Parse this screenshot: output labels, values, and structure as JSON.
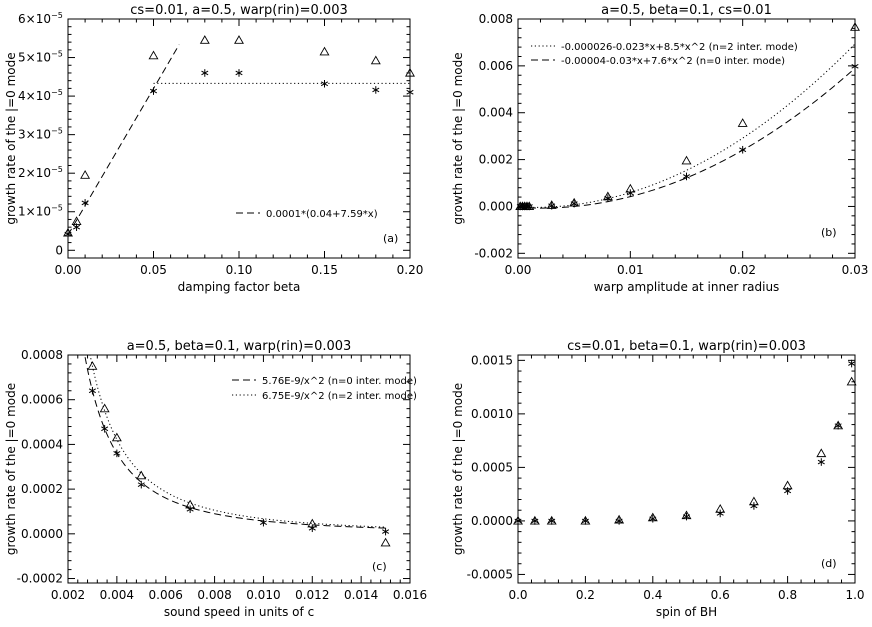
{
  "chart_data": [
    {
      "type": "scatter",
      "panel": "a",
      "title": "cs=0.01, a=0.5, warp(rin)=0.003",
      "xlabel": "damping factor beta",
      "ylabel": "growth rate of the |=0 mode",
      "xlim": [
        0.0,
        0.2
      ],
      "ylim": [
        -2e-06,
        6e-05
      ],
      "xticks": [
        0.0,
        0.05,
        0.1,
        0.15,
        0.2
      ],
      "xtick_labels": [
        "0.00",
        "0.05",
        "0.10",
        "0.15",
        "0.20"
      ],
      "yticks": [
        0,
        1e-05,
        2e-05,
        3e-05,
        4e-05,
        5e-05,
        6e-05
      ],
      "ytick_mantissa": [
        "0",
        "1×10",
        "2×10",
        "3×10",
        "4×10",
        "5×10",
        "6×10"
      ],
      "ytick_exponent": [
        "",
        "−5",
        "−5",
        "−5",
        "−5",
        "−5",
        "−5"
      ],
      "tag": "(a)",
      "series": [
        {
          "name": "triangles",
          "marker": "triangle",
          "x": [
            0.0,
            0.005,
            0.01,
            0.05,
            0.08,
            0.1,
            0.15,
            0.18,
            0.2
          ],
          "y": [
            4.5e-06,
            7.5e-06,
            1.95e-05,
            5.05e-05,
            5.45e-05,
            5.45e-05,
            5.15e-05,
            4.92e-05,
            4.6e-05
          ]
        },
        {
          "name": "asterisks",
          "marker": "asterisk",
          "x": [
            0.0,
            0.005,
            0.01,
            0.05,
            0.08,
            0.1,
            0.15,
            0.18,
            0.2
          ],
          "y": [
            4.2e-06,
            6e-06,
            1.23e-05,
            4.13e-05,
            4.6e-05,
            4.6e-05,
            4.32e-05,
            4.16e-05,
            4.1e-05
          ]
        }
      ],
      "curves": [
        {
          "name": "0.0001*(0.04+7.59*x)",
          "style": "dashed",
          "legend": "0.0001*(0.04+7.59*x)",
          "x": [
            0.0,
            0.065
          ],
          "y": [
            4e-06,
            5.334e-05
          ]
        },
        {
          "name": "plateau",
          "style": "dotted",
          "legend": "",
          "x": [
            0.05,
            0.2
          ],
          "y": [
            4.33e-05,
            4.33e-05
          ]
        }
      ]
    },
    {
      "type": "scatter",
      "panel": "b",
      "title": "a=0.5, beta=0.1, cs=0.01",
      "xlabel": "warp amplitude at inner radius",
      "ylabel": "growth rate of the |=0 mode",
      "xlim": [
        0.0,
        0.03
      ],
      "ylim": [
        -0.0022,
        0.008
      ],
      "xticks": [
        0.0,
        0.01,
        0.02,
        0.03
      ],
      "xtick_labels": [
        "0.00",
        "0.01",
        "0.02",
        "0.03"
      ],
      "yticks": [
        -0.002,
        0.0,
        0.002,
        0.004,
        0.006,
        0.008
      ],
      "ytick_labels": [
        "-0.002",
        "0.000",
        "0.002",
        "0.004",
        "0.006",
        "0.008"
      ],
      "tag": "(b)",
      "series": [
        {
          "name": "triangles",
          "marker": "triangle",
          "x": [
            0.0002,
            0.0004,
            0.0006,
            0.0008,
            0.001,
            0.003,
            0.005,
            0.008,
            0.01,
            0.015,
            0.02,
            0.03
          ],
          "y": [
            0.0,
            0.0,
            0.0,
            0.0,
            0.0,
            5e-05,
            0.00015,
            0.00042,
            0.00075,
            0.00195,
            0.00355,
            0.00765
          ]
        },
        {
          "name": "asterisks",
          "marker": "asterisk",
          "x": [
            0.0002,
            0.0004,
            0.0006,
            0.0008,
            0.001,
            0.003,
            0.005,
            0.008,
            0.01,
            0.015,
            0.02,
            0.03
          ],
          "y": [
            0.0,
            0.0,
            0.0,
            0.0,
            0.0,
            3e-05,
            0.00012,
            0.00035,
            0.00057,
            0.00128,
            0.00242,
            0.00598
          ]
        }
      ],
      "curves": [
        {
          "name": "n=2 fit",
          "style": "dotted",
          "legend": "-0.000026-0.023*x+8.5*x^2 (n=2 inter. mode)",
          "coeffs": [
            -2.6e-05,
            -0.023,
            8.5
          ],
          "xrange": [
            0.0,
            0.03
          ]
        },
        {
          "name": "n=0 fit",
          "style": "dashed",
          "legend": "-0.00004-0.03*x+7.6*x^2 (n=0 inter. mode)",
          "coeffs": [
            -4e-05,
            -0.03,
            7.6
          ],
          "xrange": [
            0.0,
            0.03
          ]
        }
      ]
    },
    {
      "type": "scatter",
      "panel": "c",
      "title": "a=0.5, beta=0.1, warp(rin)=0.003",
      "xlabel": "sound speed in units of c",
      "ylabel": "growth rate of the |=0 mode",
      "xlim": [
        0.002,
        0.016
      ],
      "ylim": [
        -0.00022,
        0.0008
      ],
      "xticks": [
        0.002,
        0.004,
        0.006,
        0.008,
        0.01,
        0.012,
        0.014,
        0.016
      ],
      "xtick_labels": [
        "0.002",
        "0.004",
        "0.006",
        "0.008",
        "0.010",
        "0.012",
        "0.014",
        "0.016"
      ],
      "yticks": [
        -0.0002,
        0.0,
        0.0002,
        0.0004,
        0.0006,
        0.0008
      ],
      "ytick_labels": [
        "-0.0002",
        "0.0000",
        "0.0002",
        "0.0004",
        "0.0006",
        "0.0008"
      ],
      "tag": "(c)",
      "series": [
        {
          "name": "triangles",
          "marker": "triangle",
          "x": [
            0.003,
            0.0035,
            0.004,
            0.005,
            0.007,
            0.012,
            0.015
          ],
          "y": [
            0.00075,
            0.00056,
            0.00043,
            0.00026,
            0.00013,
            4.5e-05,
            -4e-05
          ]
        },
        {
          "name": "asterisks",
          "marker": "asterisk",
          "x": [
            0.003,
            0.0035,
            0.004,
            0.005,
            0.007,
            0.01,
            0.012,
            0.015
          ],
          "y": [
            0.00064,
            0.00047,
            0.00036,
            0.00022,
            0.00011,
            5e-05,
            2.5e-05,
            1e-05
          ]
        }
      ],
      "curves": [
        {
          "name": "n=0 fit",
          "style": "dashed",
          "legend": "5.76E-9/x^2 (n=0 inter. mode)",
          "coef": 5.76e-09,
          "xrange": [
            0.0027,
            0.015
          ]
        },
        {
          "name": "n=2 fit",
          "style": "dotted",
          "legend": "6.75E-9/x^2 (n=2 inter. mode)",
          "coef": 6.75e-09,
          "xrange": [
            0.0029,
            0.015
          ]
        }
      ]
    },
    {
      "type": "scatter",
      "panel": "d",
      "title": "cs=0.01, beta=0.1, warp(rin)=0.003",
      "xlabel": "spin of BH",
      "ylabel": "growth rate of the |=0 mode",
      "xlim": [
        0.0,
        1.0
      ],
      "ylim": [
        -0.00058,
        0.00155
      ],
      "xticks": [
        0.0,
        0.2,
        0.4,
        0.6,
        0.8,
        1.0
      ],
      "xtick_labels": [
        "0.0",
        "0.2",
        "0.4",
        "0.6",
        "0.8",
        "1.0"
      ],
      "yticks": [
        -0.0005,
        0.0,
        0.0005,
        0.001,
        0.0015
      ],
      "ytick_labels": [
        "-0.0005",
        "0.0000",
        "0.0005",
        "0.0010",
        "0.0015"
      ],
      "tag": "(d)",
      "series": [
        {
          "name": "triangles",
          "marker": "triangle",
          "x": [
            0.0,
            0.05,
            0.1,
            0.2,
            0.3,
            0.4,
            0.5,
            0.6,
            0.7,
            0.8,
            0.9,
            0.95,
            0.99
          ],
          "y": [
            0.0,
            0.0,
            0.0,
            0.0,
            1e-05,
            3e-05,
            5e-05,
            0.00011,
            0.00018,
            0.00033,
            0.00063,
            0.00089,
            0.0013
          ]
        },
        {
          "name": "asterisks",
          "marker": "asterisk",
          "x": [
            0.0,
            0.05,
            0.1,
            0.2,
            0.3,
            0.4,
            0.5,
            0.6,
            0.7,
            0.8,
            0.9,
            0.95,
            0.99
          ],
          "y": [
            0.0,
            0.0,
            0.0,
            0.0,
            0.0,
            2e-05,
            4e-05,
            7e-05,
            0.00014,
            0.00028,
            0.00055,
            0.00089,
            0.00147
          ]
        }
      ],
      "curves": []
    }
  ]
}
